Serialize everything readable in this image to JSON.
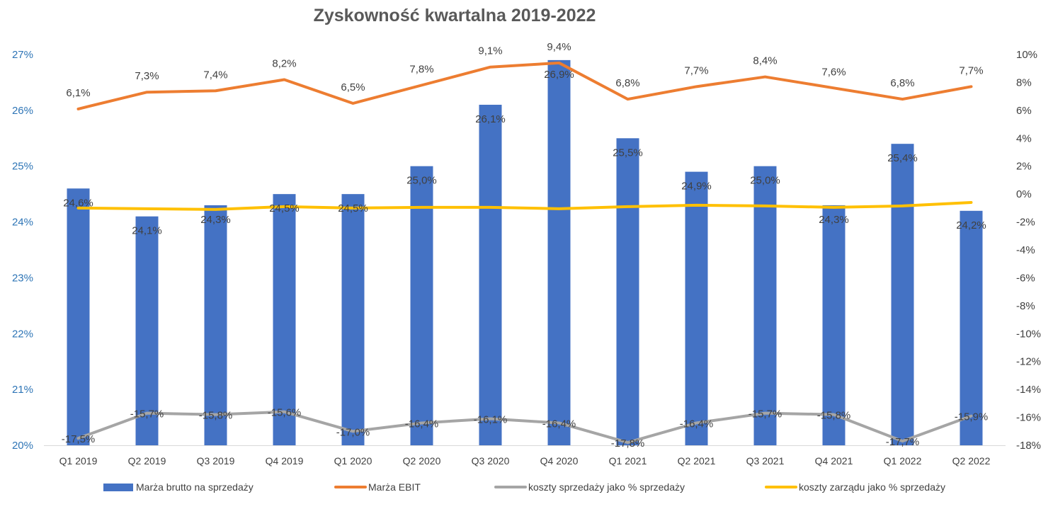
{
  "chart_data": {
    "type": "bar",
    "title": "Zyskowność kwartalna 2019-2022",
    "categories": [
      "Q1 2019",
      "Q2 2019",
      "Q3 2019",
      "Q4 2019",
      "Q1 2020",
      "Q2 2020",
      "Q3 2020",
      "Q4 2020",
      "Q1 2021",
      "Q2 2021",
      "Q3 2021",
      "Q4 2021",
      "Q1 2022",
      "Q2 2022"
    ],
    "y_left": {
      "min": 20,
      "max": 27,
      "step": 1,
      "format": "percent"
    },
    "y_right": {
      "min": -18,
      "max": 10,
      "step": 2,
      "format": "percent"
    },
    "grid": false,
    "legend_position": "bottom",
    "series": [
      {
        "name": "Marża brutto na sprzedaży",
        "kind": "bar",
        "axis": "left",
        "color": "#4472c4",
        "values": [
          24.6,
          24.1,
          24.3,
          24.5,
          24.5,
          25.0,
          26.1,
          26.9,
          25.5,
          24.9,
          25.0,
          24.3,
          25.4,
          24.2
        ],
        "labels": [
          "24,6%",
          "24,1%",
          "24,3%",
          "24,5%",
          "24,5%",
          "25,0%",
          "26,1%",
          "26,9%",
          "25,5%",
          "24,9%",
          "25,0%",
          "24,3%",
          "25,4%",
          "24,2%"
        ]
      },
      {
        "name": "Marża EBIT",
        "kind": "line",
        "axis": "right",
        "color": "#ed7d31",
        "values": [
          6.1,
          7.3,
          7.4,
          8.2,
          6.5,
          7.8,
          9.1,
          9.4,
          6.8,
          7.7,
          8.4,
          7.6,
          6.8,
          7.7
        ],
        "labels": [
          "6,1%",
          "7,3%",
          "7,4%",
          "8,2%",
          "6,5%",
          "7,8%",
          "9,1%",
          "9,4%",
          "6,8%",
          "7,7%",
          "8,4%",
          "7,6%",
          "6,8%",
          "7,7%"
        ]
      },
      {
        "name": "koszty sprzedaży jako % sprzedaży",
        "kind": "line",
        "axis": "right",
        "color": "#a5a5a5",
        "values": [
          -17.5,
          -15.7,
          -15.8,
          -15.6,
          -17.0,
          -16.4,
          -16.1,
          -16.4,
          -17.8,
          -16.4,
          -15.7,
          -15.8,
          -17.7,
          -15.9
        ],
        "labels": [
          "-17,5%",
          "-15,7%",
          "-15,8%",
          "-15,6%",
          "-17,0%",
          "-16,4%",
          "-16,1%",
          "-16,4%",
          "-17,8%",
          "-16,4%",
          "-15,7%",
          "-15,8%",
          "-17,7%",
          "-15,9%"
        ]
      },
      {
        "name": "koszty zarządu jako % sprzedaży",
        "kind": "line",
        "axis": "right",
        "color": "#ffc000",
        "values": [
          -1.0,
          -1.05,
          -1.1,
          -0.9,
          -1.0,
          -0.95,
          -0.95,
          -1.05,
          -0.9,
          -0.8,
          -0.85,
          -0.95,
          -0.85,
          -0.6
        ],
        "labels": []
      }
    ]
  }
}
